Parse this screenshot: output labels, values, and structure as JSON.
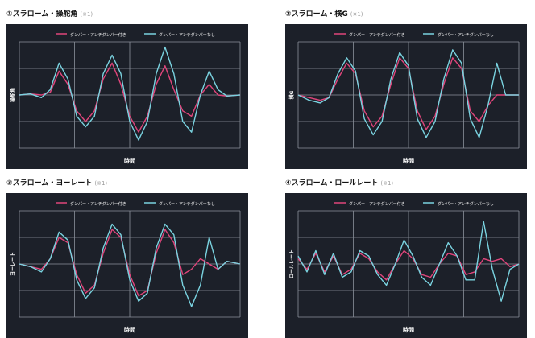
{
  "colors": {
    "background": "#1c2029",
    "grid": "#8b919b",
    "series_a": "#e0457b",
    "series_b": "#7ad3e0",
    "text": "#ffffff"
  },
  "chart_data": [
    {
      "type": "line",
      "title": "①スラローム・操舵角",
      "note": "(※1)",
      "xlabel": "時間",
      "ylabel": "操舵角",
      "legend_position": "top",
      "grid": true,
      "xlim": [
        0,
        100
      ],
      "ylim": [
        -100,
        100
      ],
      "series": [
        {
          "name": "ダンパー・アンチダンパー付き",
          "color": "#e0457b",
          "x": [
            0,
            5,
            10,
            14,
            18,
            22,
            26,
            30,
            34,
            38,
            42,
            46,
            50,
            54,
            58,
            62,
            66,
            70,
            74,
            78,
            82,
            86,
            90,
            94,
            100
          ],
          "y": [
            0,
            2,
            0,
            5,
            45,
            20,
            -30,
            -50,
            -30,
            30,
            60,
            20,
            -40,
            -70,
            -40,
            20,
            55,
            10,
            -30,
            -40,
            0,
            20,
            0,
            -2,
            0
          ]
        },
        {
          "name": "ダンパー・アンチダンパーなし",
          "color": "#7ad3e0",
          "x": [
            0,
            5,
            10,
            14,
            18,
            22,
            26,
            30,
            34,
            38,
            42,
            46,
            50,
            54,
            58,
            62,
            66,
            70,
            74,
            78,
            82,
            86,
            90,
            94,
            100
          ],
          "y": [
            0,
            2,
            -5,
            10,
            60,
            30,
            -40,
            -60,
            -40,
            40,
            75,
            40,
            -50,
            -85,
            -50,
            40,
            90,
            40,
            -50,
            -70,
            0,
            45,
            10,
            -2,
            0
          ]
        }
      ]
    },
    {
      "type": "line",
      "title": "②スラローム・横G",
      "note": "(※1)",
      "xlabel": "時間",
      "ylabel": "横G",
      "legend_position": "top",
      "grid": true,
      "xlim": [
        0,
        100
      ],
      "ylim": [
        -100,
        100
      ],
      "series": [
        {
          "name": "ダンパー・アンチダンパー付き",
          "color": "#e0457b",
          "x": [
            0,
            5,
            10,
            14,
            18,
            22,
            26,
            30,
            34,
            38,
            42,
            46,
            50,
            54,
            58,
            62,
            66,
            70,
            74,
            78,
            82,
            86,
            90,
            94,
            100
          ],
          "y": [
            0,
            -5,
            -10,
            -5,
            30,
            60,
            40,
            -30,
            -60,
            -40,
            20,
            70,
            50,
            -30,
            -65,
            -40,
            20,
            70,
            50,
            -30,
            -50,
            -20,
            0,
            0,
            0
          ]
        },
        {
          "name": "ダンパー・アンチダンパーなし",
          "color": "#7ad3e0",
          "x": [
            0,
            5,
            10,
            14,
            18,
            22,
            26,
            30,
            34,
            38,
            42,
            46,
            50,
            54,
            58,
            62,
            66,
            70,
            74,
            78,
            82,
            86,
            90,
            94,
            100
          ],
          "y": [
            0,
            -10,
            -15,
            -5,
            40,
            70,
            45,
            -45,
            -75,
            -50,
            30,
            80,
            55,
            -45,
            -80,
            -50,
            30,
            85,
            60,
            -45,
            -80,
            -20,
            60,
            0,
            0
          ]
        }
      ]
    },
    {
      "type": "line",
      "title": "③スラローム・ヨーレート",
      "note": "(※1)",
      "xlabel": "時間",
      "ylabel": "ヨーレート",
      "legend_position": "top",
      "grid": true,
      "xlim": [
        0,
        100
      ],
      "ylim": [
        -100,
        100
      ],
      "series": [
        {
          "name": "ダンパー・アンチダンパー付き",
          "color": "#e0457b",
          "x": [
            0,
            5,
            10,
            14,
            18,
            22,
            26,
            30,
            34,
            38,
            42,
            46,
            50,
            54,
            58,
            62,
            66,
            70,
            74,
            78,
            82,
            86,
            90,
            94,
            100
          ],
          "y": [
            0,
            -5,
            -10,
            10,
            50,
            40,
            -20,
            -55,
            -40,
            20,
            65,
            50,
            -20,
            -60,
            -50,
            20,
            65,
            40,
            -20,
            -10,
            10,
            0,
            -10,
            5,
            0
          ]
        },
        {
          "name": "ダンパー・アンチダンパーなし",
          "color": "#7ad3e0",
          "x": [
            0,
            5,
            10,
            14,
            18,
            22,
            26,
            30,
            34,
            38,
            42,
            46,
            50,
            54,
            58,
            62,
            66,
            70,
            74,
            78,
            82,
            86,
            90,
            94,
            100
          ],
          "y": [
            0,
            -5,
            -15,
            10,
            60,
            45,
            -30,
            -65,
            -45,
            30,
            75,
            55,
            -30,
            -70,
            -55,
            30,
            75,
            55,
            -40,
            -80,
            -40,
            50,
            -10,
            5,
            0
          ]
        }
      ]
    },
    {
      "type": "line",
      "title": "④スラローム・ロールレート",
      "note": "(※1)",
      "xlabel": "時間",
      "ylabel": "ロールレート",
      "legend_position": "top",
      "grid": true,
      "xlim": [
        0,
        100
      ],
      "ylim": [
        -100,
        100
      ],
      "series": [
        {
          "name": "ダンパー・アンチダンパー付き",
          "color": "#e0457b",
          "x": [
            0,
            4,
            8,
            12,
            16,
            20,
            24,
            28,
            32,
            36,
            40,
            44,
            48,
            52,
            56,
            60,
            64,
            68,
            72,
            76,
            80,
            84,
            88,
            92,
            96,
            100
          ],
          "y": [
            10,
            -10,
            20,
            -15,
            15,
            -20,
            -10,
            20,
            10,
            -15,
            -30,
            0,
            25,
            10,
            -20,
            -25,
            0,
            20,
            15,
            -20,
            -15,
            10,
            5,
            10,
            -5,
            0
          ]
        },
        {
          "name": "ダンパー・アンチダンパーなし",
          "color": "#7ad3e0",
          "x": [
            0,
            4,
            8,
            12,
            16,
            20,
            24,
            28,
            32,
            36,
            40,
            44,
            48,
            52,
            56,
            60,
            64,
            68,
            72,
            76,
            80,
            84,
            88,
            92,
            96,
            100
          ],
          "y": [
            15,
            -15,
            25,
            -20,
            20,
            -25,
            -15,
            25,
            15,
            -20,
            -40,
            0,
            45,
            15,
            -25,
            -40,
            0,
            40,
            15,
            -30,
            -30,
            80,
            -10,
            -70,
            -10,
            0
          ]
        }
      ]
    }
  ]
}
